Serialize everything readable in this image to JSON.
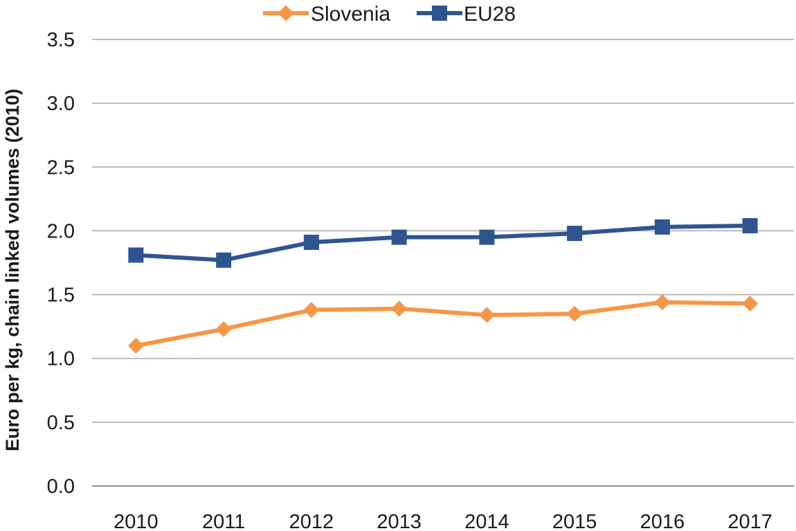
{
  "chart_data": {
    "type": "line",
    "title": "",
    "xlabel": "",
    "ylabel": "Euro per kg, chain linked volumes (2010)",
    "categories": [
      "2010",
      "2011",
      "2012",
      "2013",
      "2014",
      "2015",
      "2016",
      "2017"
    ],
    "ylim": [
      0,
      3.5
    ],
    "yticks": [
      "0.0",
      "0.5",
      "1.0",
      "1.5",
      "2.0",
      "2.5",
      "3.0",
      "3.5"
    ],
    "grid": true,
    "legend": "top-center",
    "series": [
      {
        "name": "Slovenia",
        "color": "#F79646",
        "marker": "diamond",
        "values": [
          1.1,
          1.23,
          1.38,
          1.39,
          1.34,
          1.35,
          1.44,
          1.43
        ]
      },
      {
        "name": "EU28",
        "color": "#2E5590",
        "marker": "square",
        "values": [
          1.81,
          1.77,
          1.91,
          1.95,
          1.95,
          1.98,
          2.03,
          2.04
        ]
      }
    ]
  }
}
